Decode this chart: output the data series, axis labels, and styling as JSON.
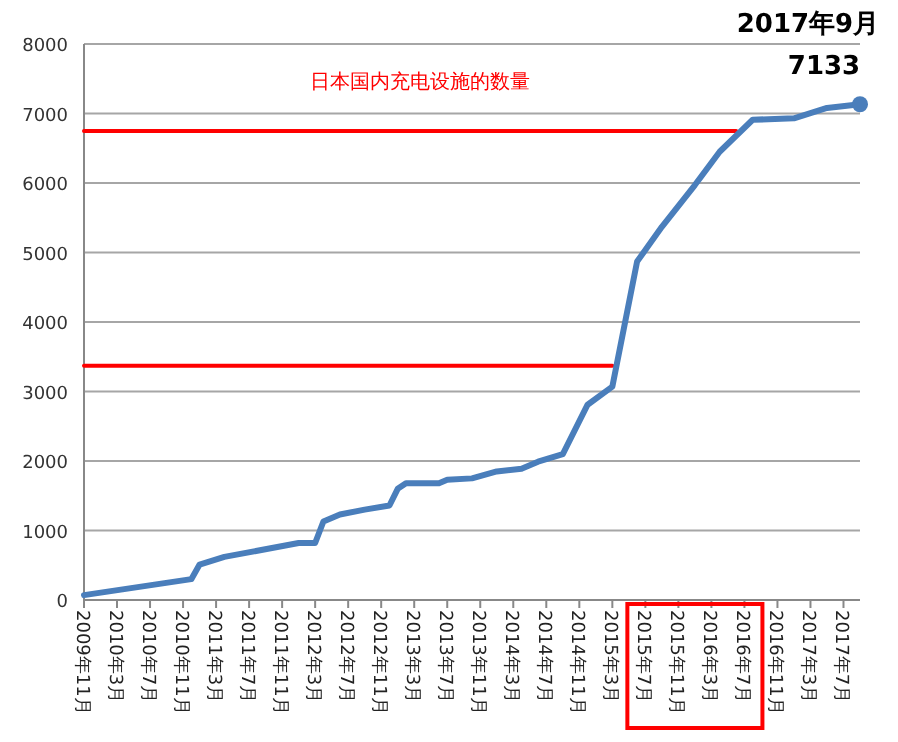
{
  "chart_data": {
    "type": "line",
    "title": "日本国内充电设施的数量",
    "annotations": [
      {
        "text": "2017年9月",
        "x": "2017-09",
        "y": 7133
      }
    ],
    "xlim": [
      "2009-11",
      "2017-09"
    ],
    "xticks": [
      {
        "value": "2009-11",
        "label": "2009年11月"
      },
      {
        "value": "2010-03",
        "label": "2010年3月"
      },
      {
        "value": "2010-07",
        "label": "2010年7月"
      },
      {
        "value": "2010-11",
        "label": "2010年11月"
      },
      {
        "value": "2011-03",
        "label": "2011年3月"
      },
      {
        "value": "2011-07",
        "label": "2011年7月"
      },
      {
        "value": "2011-11",
        "label": "2011年11月"
      },
      {
        "value": "2012-03",
        "label": "2012年3月"
      },
      {
        "value": "2012-07",
        "label": "2012年7月"
      },
      {
        "value": "2012-11",
        "label": "2012年11月"
      },
      {
        "value": "2013-03",
        "label": "2013年3月"
      },
      {
        "value": "2013-07",
        "label": "2013年7月"
      },
      {
        "value": "2013-11",
        "label": "2013年11月"
      },
      {
        "value": "2014-03",
        "label": "2014年3月"
      },
      {
        "value": "2014-07",
        "label": "2014年7月"
      },
      {
        "value": "2014-11",
        "label": "2014年11月"
      },
      {
        "value": "2015-03",
        "label": "2015年3月"
      },
      {
        "value": "2015-07",
        "label": "2015年7月"
      },
      {
        "value": "2015-11",
        "label": "2015年11月"
      },
      {
        "value": "2016-03",
        "label": "2016年3月"
      },
      {
        "value": "2016-07",
        "label": "2016年7月"
      },
      {
        "value": "2016-11",
        "label": "2016年11月"
      },
      {
        "value": "2017-03",
        "label": "2017年3月"
      },
      {
        "value": "2017-07",
        "label": "2017年7月"
      }
    ],
    "ylim": [
      0,
      8000
    ],
    "yticks": [
      0,
      1000,
      2000,
      3000,
      4000,
      5000,
      6000,
      7000,
      8000
    ],
    "grid": "y",
    "series": [
      {
        "color": "#4a7ebb",
        "x": [
          "2009-11",
          "2010-12",
          "2011-01",
          "2011-04",
          "2012-01",
          "2012-03",
          "2012-04",
          "2012-06",
          "2012-09",
          "2012-12",
          "2013-01",
          "2013-02",
          "2013-06",
          "2013-07",
          "2013-10",
          "2014-01",
          "2014-04",
          "2014-06",
          "2014-09",
          "2014-12",
          "2015-03",
          "2015-06",
          "2015-09",
          "2016-01",
          "2016-04",
          "2016-08",
          "2017-01",
          "2017-05",
          "2017-09"
        ],
        "values": [
          70,
          300,
          510,
          620,
          820,
          820,
          1130,
          1230,
          1300,
          1360,
          1600,
          1680,
          1680,
          1730,
          1750,
          1850,
          1890,
          1990,
          2100,
          2810,
          3070,
          4870,
          5370,
          5970,
          6450,
          6910,
          6930,
          7080,
          7133
        ],
        "value_labels": [
          null,
          null,
          null,
          null,
          null,
          null,
          null,
          null,
          null,
          null,
          null,
          null,
          null,
          null,
          null,
          null,
          null,
          null,
          null,
          null,
          null,
          null,
          null,
          null,
          null,
          null,
          null,
          null,
          "7133"
        ]
      },
      {
        "color": "#ff0000",
        "x": [
          "2009-11",
          "2016-06"
        ],
        "values": [
          6750,
          6750
        ]
      },
      {
        "color": "#ff0000",
        "x": [
          "2009-11",
          "2015-03"
        ],
        "values": [
          3370,
          3370
        ]
      }
    ]
  }
}
